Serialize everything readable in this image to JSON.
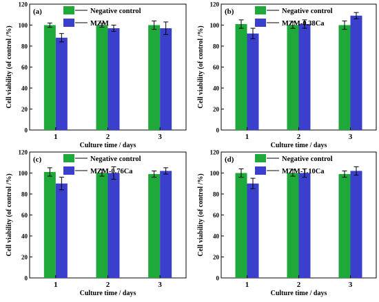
{
  "figure": {
    "colors": {
      "negative": "#1fa93a",
      "treated": "#3a3fcc",
      "axis": "#000000",
      "errorbar": "#000000"
    }
  },
  "chart_data": [
    {
      "type": "bar",
      "panel_label": "(a)",
      "categories": [
        "1",
        "2",
        "3"
      ],
      "xlabel": "Culture time / days",
      "ylabel": "Cell viability (of control /%)",
      "ylim": [
        0,
        120
      ],
      "yticks": [
        "0",
        "20",
        "40",
        "60",
        "80",
        "100",
        "120"
      ],
      "legend_position": "top-right",
      "series": [
        {
          "name": "Negative control",
          "values": [
            100,
            100,
            100
          ],
          "errors": [
            2,
            2,
            4
          ]
        },
        {
          "name": "MZM",
          "values": [
            88,
            97,
            97
          ],
          "errors": [
            4,
            3,
            6
          ]
        }
      ]
    },
    {
      "type": "bar",
      "panel_label": "(b)",
      "categories": [
        "1",
        "2",
        "3"
      ],
      "xlabel": "Culture time / days",
      "ylabel": "Cell viability (of control /%)",
      "ylim": [
        0,
        120
      ],
      "yticks": [
        "0",
        "20",
        "40",
        "60",
        "80",
        "100",
        "120"
      ],
      "legend_position": "top-right",
      "series": [
        {
          "name": "Negative control",
          "values": [
            101,
            100,
            100
          ],
          "errors": [
            4,
            3,
            4
          ]
        },
        {
          "name": "MZM-0.38Ca",
          "values": [
            92,
            101,
            109
          ],
          "errors": [
            5,
            4,
            3
          ]
        }
      ]
    },
    {
      "type": "bar",
      "panel_label": "(c)",
      "categories": [
        "1",
        "2",
        "3"
      ],
      "xlabel": "Culture time / days",
      "ylabel": "Cell viability (of control /%)",
      "ylim": [
        0,
        120
      ],
      "yticks": [
        "0",
        "20",
        "40",
        "60",
        "80",
        "100",
        "120"
      ],
      "legend_position": "top-right",
      "series": [
        {
          "name": "Negative control",
          "values": [
            101,
            100,
            99
          ],
          "errors": [
            4,
            3,
            3
          ]
        },
        {
          "name": "MZM-0.76Ca",
          "values": [
            90,
            100,
            102
          ],
          "errors": [
            6,
            6,
            3
          ]
        }
      ]
    },
    {
      "type": "bar",
      "panel_label": "(d)",
      "categories": [
        "1",
        "2",
        "3"
      ],
      "xlabel": "Culture time / days",
      "ylabel": "Cell viability (of control /%)",
      "ylim": [
        0,
        120
      ],
      "yticks": [
        "0",
        "20",
        "40",
        "60",
        "80",
        "100",
        "120"
      ],
      "legend_position": "top-right",
      "series": [
        {
          "name": "Negative control",
          "values": [
            100,
            100,
            99
          ],
          "errors": [
            4,
            3,
            3
          ]
        },
        {
          "name": "MZM-1.10Ca",
          "values": [
            90,
            100,
            102
          ],
          "errors": [
            5,
            4,
            4
          ]
        }
      ]
    }
  ]
}
